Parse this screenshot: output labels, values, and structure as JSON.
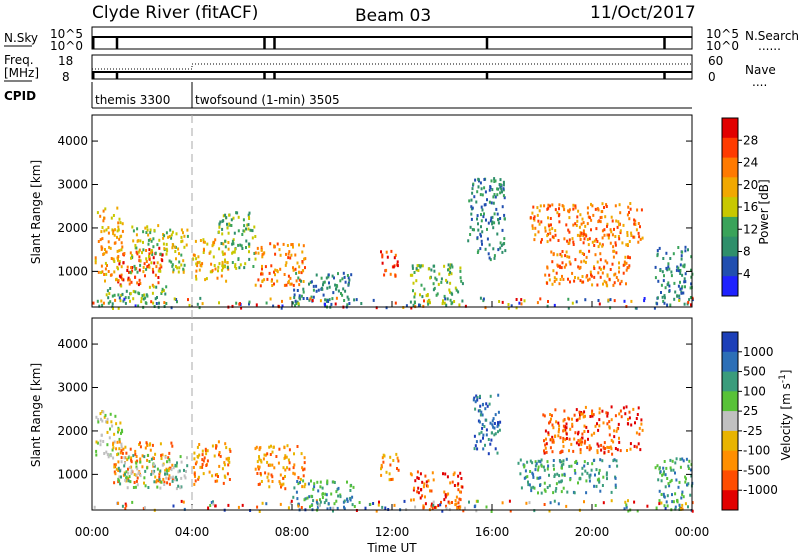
{
  "header": {
    "station": "Clyde River (fitACF)",
    "beam": "Beam 03",
    "date": "11/Oct/2017"
  },
  "strip_labels": {
    "nsky": "N.Sky",
    "nsearch": "N.Search",
    "freq_top": "Freq.",
    "freq_unit": "[MHz]",
    "nave": "Nave",
    "cpid": "CPID",
    "nsky_ticks": [
      "10^5",
      "10^0"
    ],
    "nsearch_ticks": [
      "10^5",
      "10^0"
    ],
    "freq_ticks": [
      "18",
      "8"
    ],
    "nave_ticks": [
      "60",
      "0"
    ],
    "nsearch_dots": "......",
    "nave_dots": "...."
  },
  "cpid_modes": [
    {
      "label": "themis 3300",
      "start_hour": 0,
      "end_hour": 4
    },
    {
      "label": "twofsound (1-min) 3505",
      "start_hour": 4,
      "end_hour": 24
    }
  ],
  "colors": {
    "power_scale": [
      "#1f22ff",
      "#214fb0",
      "#2f8f6b",
      "#3aa35a",
      "#c8c800",
      "#f1a800",
      "#ff7a00",
      "#ff3b00",
      "#e20000"
    ],
    "velocity_scale": [
      "#1c3fb8",
      "#2c6fb7",
      "#3a9c7c",
      "#58c238",
      "#c0c0c0",
      "#e8b400",
      "#ff8f00",
      "#ff4d00",
      "#e20000"
    ]
  },
  "chart_data": [
    {
      "type": "heatmap",
      "name": "power",
      "xlabel": "",
      "ylabel": "Slant Range [km]",
      "xlim_hours": [
        0,
        24
      ],
      "ylim": [
        180,
        4600
      ],
      "yticks": [
        1000,
        2000,
        3000,
        4000
      ],
      "colorbar": {
        "label": "Power [dB]",
        "ticks": [
          "28",
          "24",
          "20",
          "16",
          "12",
          "8",
          "4"
        ]
      },
      "regions": [
        {
          "x": [
            0.1,
            1.2
          ],
          "y": [
            800,
            2500
          ],
          "level": 5
        },
        {
          "x": [
            1.0,
            2.8
          ],
          "y": [
            700,
            1600
          ],
          "level": 7
        },
        {
          "x": [
            1.5,
            3.8
          ],
          "y": [
            1000,
            2100
          ],
          "level": 4
        },
        {
          "x": [
            0.5,
            3.0
          ],
          "y": [
            200,
            700
          ],
          "level": 3
        },
        {
          "x": [
            4.0,
            5.5
          ],
          "y": [
            800,
            1800
          ],
          "level": 5
        },
        {
          "x": [
            5.0,
            6.5
          ],
          "y": [
            1100,
            2400
          ],
          "level": 3
        },
        {
          "x": [
            6.5,
            8.5
          ],
          "y": [
            700,
            1700
          ],
          "level": 6
        },
        {
          "x": [
            8.0,
            10.5
          ],
          "y": [
            200,
            1000
          ],
          "level": 2
        },
        {
          "x": [
            11.5,
            12.3
          ],
          "y": [
            900,
            1500
          ],
          "level": 7
        },
        {
          "x": [
            12.7,
            14.8
          ],
          "y": [
            250,
            1200
          ],
          "level": 3
        },
        {
          "x": [
            15.0,
            16.5
          ],
          "y": [
            1300,
            3200
          ],
          "level": 2
        },
        {
          "x": [
            17.5,
            22.0
          ],
          "y": [
            1600,
            2600
          ],
          "level": 6
        },
        {
          "x": [
            18.0,
            21.5
          ],
          "y": [
            700,
            1500
          ],
          "level": 6
        },
        {
          "x": [
            22.5,
            24.0
          ],
          "y": [
            250,
            1600
          ],
          "level": 2
        }
      ]
    },
    {
      "type": "heatmap",
      "name": "velocity",
      "xlabel": "Time UT",
      "ylabel": "Slant Range [km]",
      "xlim_hours": [
        0,
        24
      ],
      "ylim": [
        180,
        4600
      ],
      "yticks": [
        1000,
        2000,
        3000,
        4000
      ],
      "xtick_labels": [
        "00:00",
        "04:00",
        "08:00",
        "12:00",
        "16:00",
        "20:00",
        "00:00"
      ],
      "xtick_hours": [
        0,
        4,
        8,
        12,
        16,
        20,
        24
      ],
      "colorbar": {
        "label": "Velocity [m s^-1]",
        "ticks": [
          "1000",
          "500",
          "100",
          "25",
          "-25",
          "-100",
          "-500",
          "-1000"
        ]
      },
      "regions": [
        {
          "x": [
            0.1,
            1.2
          ],
          "y": [
            1400,
            2500
          ],
          "level": 4
        },
        {
          "x": [
            0.8,
            3.2
          ],
          "y": [
            800,
            1800
          ],
          "level": 6
        },
        {
          "x": [
            1.0,
            3.8
          ],
          "y": [
            700,
            1500
          ],
          "level": 3
        },
        {
          "x": [
            4.0,
            5.5
          ],
          "y": [
            800,
            1800
          ],
          "level": 6
        },
        {
          "x": [
            6.5,
            8.5
          ],
          "y": [
            700,
            1700
          ],
          "level": 6
        },
        {
          "x": [
            8.0,
            10.5
          ],
          "y": [
            200,
            900
          ],
          "level": 2
        },
        {
          "x": [
            11.5,
            12.3
          ],
          "y": [
            900,
            1500
          ],
          "level": 6
        },
        {
          "x": [
            12.7,
            14.8
          ],
          "y": [
            250,
            1100
          ],
          "level": 7
        },
        {
          "x": [
            15.2,
            16.3
          ],
          "y": [
            1500,
            2900
          ],
          "level": 1
        },
        {
          "x": [
            18.0,
            22.0
          ],
          "y": [
            1500,
            2600
          ],
          "level": 7
        },
        {
          "x": [
            17.0,
            21.0
          ],
          "y": [
            600,
            1400
          ],
          "level": 2
        },
        {
          "x": [
            22.5,
            24.0
          ],
          "y": [
            200,
            1400
          ],
          "level": 2
        }
      ]
    }
  ]
}
